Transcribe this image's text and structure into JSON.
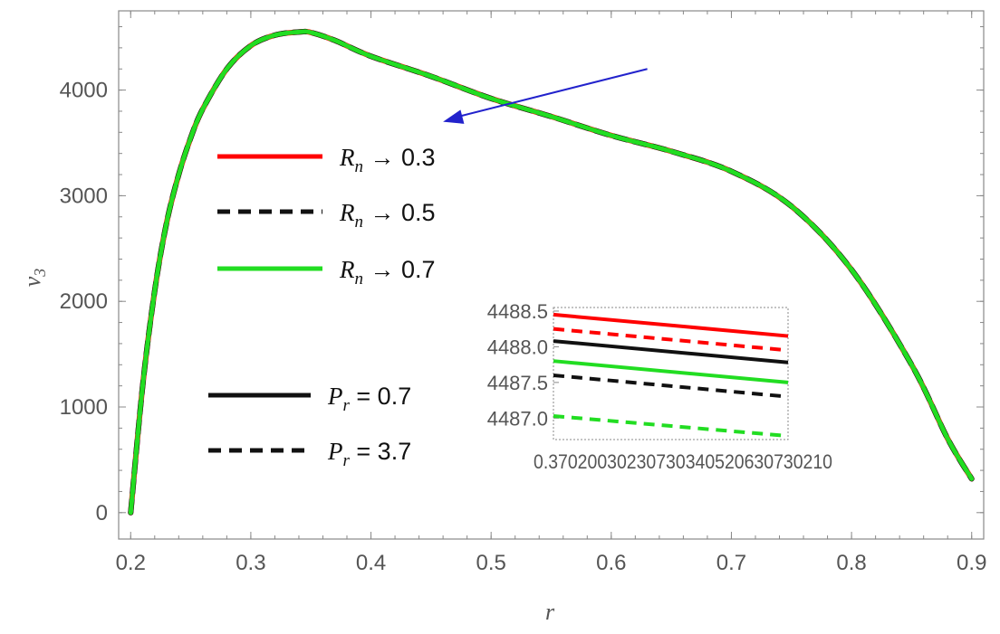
{
  "chart_data": [
    {
      "type": "line",
      "xlabel": "r",
      "ylabel": "v3",
      "xlim": [
        0.19,
        0.91
      ],
      "ylim": [
        -250,
        4750
      ],
      "x_ticks": [
        "0.2",
        "0.3",
        "0.4",
        "0.5",
        "0.6",
        "0.7",
        "0.8",
        "0.9"
      ],
      "y_ticks": [
        "0",
        "1000",
        "2000",
        "3000",
        "4000"
      ],
      "x": [
        0.2,
        0.21,
        0.22,
        0.23,
        0.24,
        0.25,
        0.26,
        0.28,
        0.3,
        0.32,
        0.34,
        0.35,
        0.37,
        0.4,
        0.45,
        0.5,
        0.55,
        0.6,
        0.65,
        0.7,
        0.75,
        0.8,
        0.85,
        0.88,
        0.9
      ],
      "series": [
        {
          "name": "R_n → 0.3",
          "color": "#ff0000",
          "style": "solid",
          "values": [
            0,
            1200,
            2100,
            2750,
            3200,
            3550,
            3820,
            4200,
            4420,
            4520,
            4550,
            4545,
            4470,
            4320,
            4130,
            3920,
            3750,
            3570,
            3420,
            3230,
            2900,
            2300,
            1400,
            700,
            320
          ]
        },
        {
          "name": "R_n → 0.5",
          "color": "#111111",
          "style": "dashed",
          "values": [
            0,
            1200,
            2100,
            2750,
            3200,
            3550,
            3820,
            4200,
            4420,
            4520,
            4550,
            4545,
            4470,
            4320,
            4130,
            3920,
            3750,
            3570,
            3420,
            3230,
            2900,
            2300,
            1400,
            700,
            320
          ]
        },
        {
          "name": "R_n → 0.7",
          "color": "#22dd22",
          "style": "solid",
          "values": [
            0,
            1200,
            2100,
            2750,
            3200,
            3550,
            3820,
            4200,
            4420,
            4520,
            4550,
            4545,
            4470,
            4320,
            4130,
            3920,
            3750,
            3570,
            3420,
            3230,
            2900,
            2300,
            1400,
            700,
            320
          ]
        }
      ],
      "legend": [
        {
          "symbol": "R",
          "sub": "n",
          "rel": "→",
          "value": "0.3",
          "color": "#ff0000",
          "style": "solid"
        },
        {
          "symbol": "R",
          "sub": "n",
          "rel": "→",
          "value": "0.5",
          "color": "#111111",
          "style": "dashed"
        },
        {
          "symbol": "R",
          "sub": "n",
          "rel": "→",
          "value": "0.7",
          "color": "#22dd22",
          "style": "solid"
        },
        {
          "symbol": "P",
          "sub": "r",
          "rel": "=",
          "value": "0.7",
          "color": "#111111",
          "style": "solid"
        },
        {
          "symbol": "P",
          "sub": "r",
          "rel": "=",
          "value": "3.7",
          "color": "#111111",
          "style": "dashed"
        }
      ],
      "legend_placement": "left",
      "annotation": {
        "type": "arrow",
        "color": "#2222cc",
        "from": [
          0.63,
          4200
        ],
        "to": [
          0.46,
          3700
        ]
      },
      "grid": false
    },
    {
      "type": "line",
      "role": "inset",
      "xlim": [
        0.37,
        0.3721
      ],
      "ylim": [
        4486.7,
        4488.55
      ],
      "x_tick_text": "0.37020030230730340520630730210",
      "y_ticks": [
        "4487.0",
        "4487.5",
        "4488.0",
        "4488.5"
      ],
      "x": [
        0.37,
        0.3721
      ],
      "series": [
        {
          "color": "#ff0000",
          "style": "solid",
          "values": [
            4488.45,
            4488.15
          ]
        },
        {
          "color": "#ff0000",
          "style": "dashed",
          "values": [
            4488.25,
            4487.95
          ]
        },
        {
          "color": "#111111",
          "style": "solid",
          "values": [
            4488.08,
            4487.78
          ]
        },
        {
          "color": "#22dd22",
          "style": "solid",
          "values": [
            4487.8,
            4487.5
          ]
        },
        {
          "color": "#111111",
          "style": "dashed",
          "values": [
            4487.6,
            4487.3
          ]
        },
        {
          "color": "#22dd22",
          "style": "dashed",
          "values": [
            4487.03,
            4486.75
          ]
        }
      ],
      "grid": false
    }
  ]
}
